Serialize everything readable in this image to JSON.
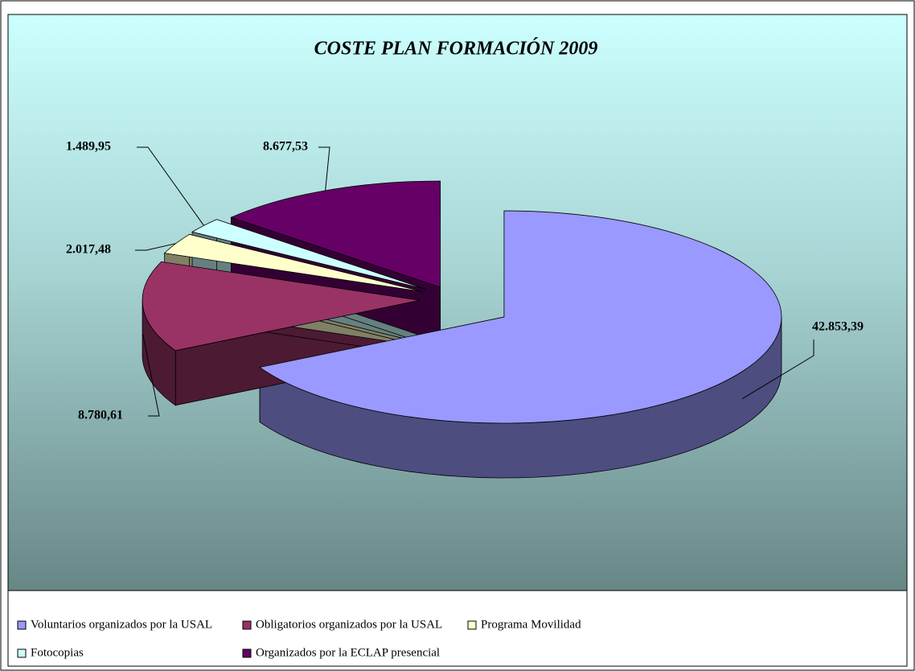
{
  "chart_data": {
    "type": "pie3d",
    "title": "COSTE PLAN FORMACIÓN 2009",
    "categories": [
      "Voluntarios organizados por la USAL",
      "Obligatorios organizados por la USAL",
      "Programa Movilidad",
      "Fotocopias",
      "Organizados por la ECLAP presencial"
    ],
    "values": [
      42853.39,
      8780.61,
      2017.48,
      1489.95,
      8677.53
    ],
    "value_labels": [
      "42.853,39",
      "8.780,61",
      "2.017,48",
      "1.489,95",
      "8.677,53"
    ],
    "colors": [
      "#9999ff",
      "#993366",
      "#ffffcc",
      "#ccffff",
      "#660066"
    ],
    "legend": "bottom"
  }
}
